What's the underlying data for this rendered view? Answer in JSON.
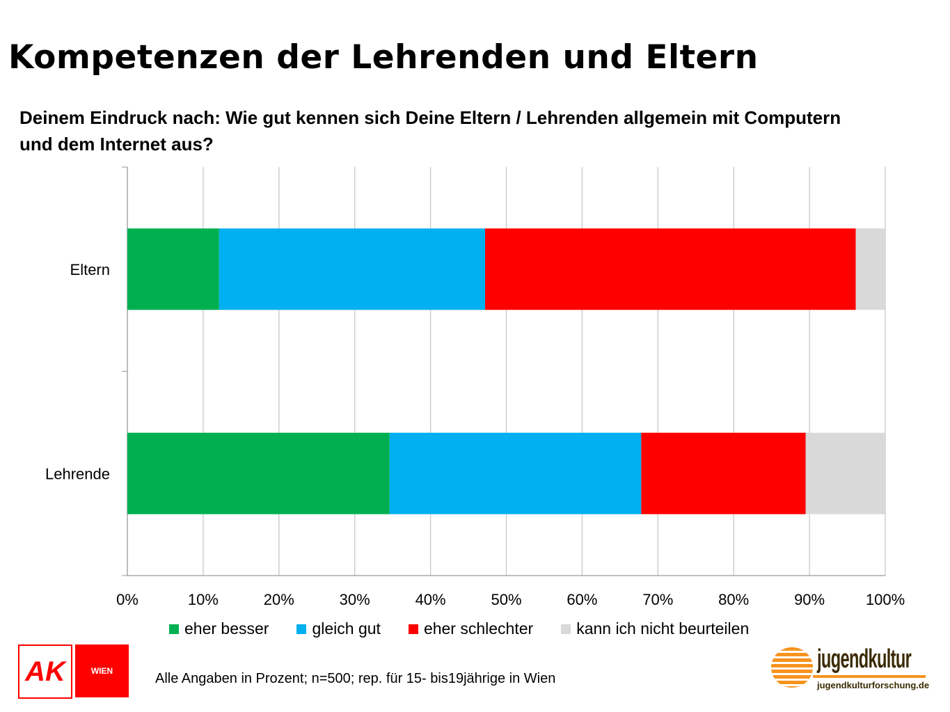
{
  "title": "Kompetenzen der Lehrenden und Eltern",
  "subtitle": "Deinem Eindruck nach: Wie gut kennen sich Deine Eltern / Lehrenden  allgemein mit Computern und dem Internet aus?",
  "footnote": "Alle Angaben in Prozent; n=500; rep. für 15- bis19jährige in Wien",
  "logos": {
    "ak": "AK",
    "ak_wien": "WIEN",
    "jugendkultur": "jugendkultur",
    "jugendkultur_url": "jugendkulturforschung.de"
  },
  "chart_data": {
    "type": "bar",
    "orientation": "horizontal",
    "stacked": "100%",
    "categories": [
      "Eltern",
      "Lehrende"
    ],
    "series": [
      {
        "name": "eher besser",
        "color": "#00b050",
        "values": [
          12.1,
          34.6
        ]
      },
      {
        "name": "gleich gut",
        "color": "#00b0f0",
        "values": [
          35.1,
          33.2
        ]
      },
      {
        "name": "eher schlechter",
        "color": "#ff0000",
        "values": [
          48.9,
          21.7
        ]
      },
      {
        "name": "kann ich nicht beurteilen",
        "color": "#d9d9d9",
        "values": [
          3.9,
          10.5
        ]
      }
    ],
    "xlim": [
      0,
      100
    ],
    "xticks": [
      "0%",
      "10%",
      "20%",
      "30%",
      "40%",
      "50%",
      "60%",
      "70%",
      "80%",
      "90%",
      "100%"
    ],
    "grid": true,
    "legend": "bottom"
  }
}
